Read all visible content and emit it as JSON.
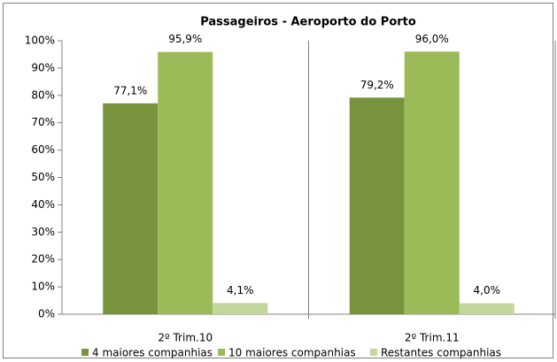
{
  "chart_data": {
    "type": "bar",
    "title": "Passageiros - Aeroporto do Porto",
    "categories": [
      "2º Trim.10",
      "2º Trim.11"
    ],
    "series": [
      {
        "name": "4 maiores companhias",
        "color": "#77933c",
        "values": [
          77.1,
          79.2
        ],
        "value_labels": [
          "77,1%",
          "79,2%"
        ]
      },
      {
        "name": "10 maiores companhias",
        "color": "#9bbb59",
        "values": [
          95.9,
          96.0
        ],
        "value_labels": [
          "95,9%",
          "96,0%"
        ]
      },
      {
        "name": "Restantes companhias",
        "color": "#c3d69b",
        "values": [
          4.1,
          4.0
        ],
        "value_labels": [
          "4,1%",
          "4,0%"
        ]
      }
    ],
    "ylim": [
      0,
      100
    ],
    "yticks": [
      {
        "value": 0,
        "label": "0%"
      },
      {
        "value": 10,
        "label": "10%"
      },
      {
        "value": 20,
        "label": "20%"
      },
      {
        "value": 30,
        "label": "30%"
      },
      {
        "value": 40,
        "label": "40%"
      },
      {
        "value": 50,
        "label": "50%"
      },
      {
        "value": 60,
        "label": "60%"
      },
      {
        "value": 70,
        "label": "70%"
      },
      {
        "value": 80,
        "label": "80%"
      },
      {
        "value": 90,
        "label": "90%"
      },
      {
        "value": 100,
        "label": "100%"
      }
    ],
    "grid": false,
    "legend": "bottom"
  }
}
